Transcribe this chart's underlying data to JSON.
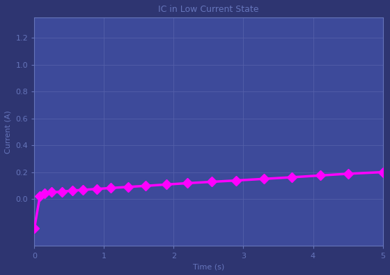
{
  "title": "IC in Low Current State",
  "xlabel": "Time (s)",
  "ylabel": "Current (A)",
  "bg_color": "#2e3571",
  "plot_bg_color": "#3d4a9a",
  "grid_color": "#5560aa",
  "line_color": "#ff00ff",
  "marker_color": "#ff00ff",
  "text_color": "#6675bb",
  "tick_color": "#6675bb",
  "spine_color": "#6675bb",
  "xlim": [
    0.0,
    5.0
  ],
  "ylim": [
    -0.35,
    1.35
  ],
  "yticks": [
    0.0,
    0.2,
    0.4,
    0.6,
    0.8,
    1.0,
    1.2
  ],
  "xticks": [
    0,
    1,
    2,
    3,
    4,
    5
  ],
  "x_data": [
    0.0,
    0.08,
    0.15,
    0.25,
    0.4,
    0.55,
    0.7,
    0.9,
    1.1,
    1.35,
    1.6,
    1.9,
    2.2,
    2.55,
    2.9,
    3.3,
    3.7,
    4.1,
    4.5,
    5.0
  ],
  "y_data": [
    -0.22,
    0.02,
    0.04,
    0.05,
    0.055,
    0.063,
    0.068,
    0.075,
    0.082,
    0.09,
    0.098,
    0.108,
    0.118,
    0.128,
    0.138,
    0.15,
    0.162,
    0.175,
    0.188,
    0.2
  ],
  "linewidth": 2.5,
  "markersize": 7,
  "marker": "D",
  "title_fontsize": 9,
  "label_fontsize": 8,
  "tick_fontsize": 8
}
